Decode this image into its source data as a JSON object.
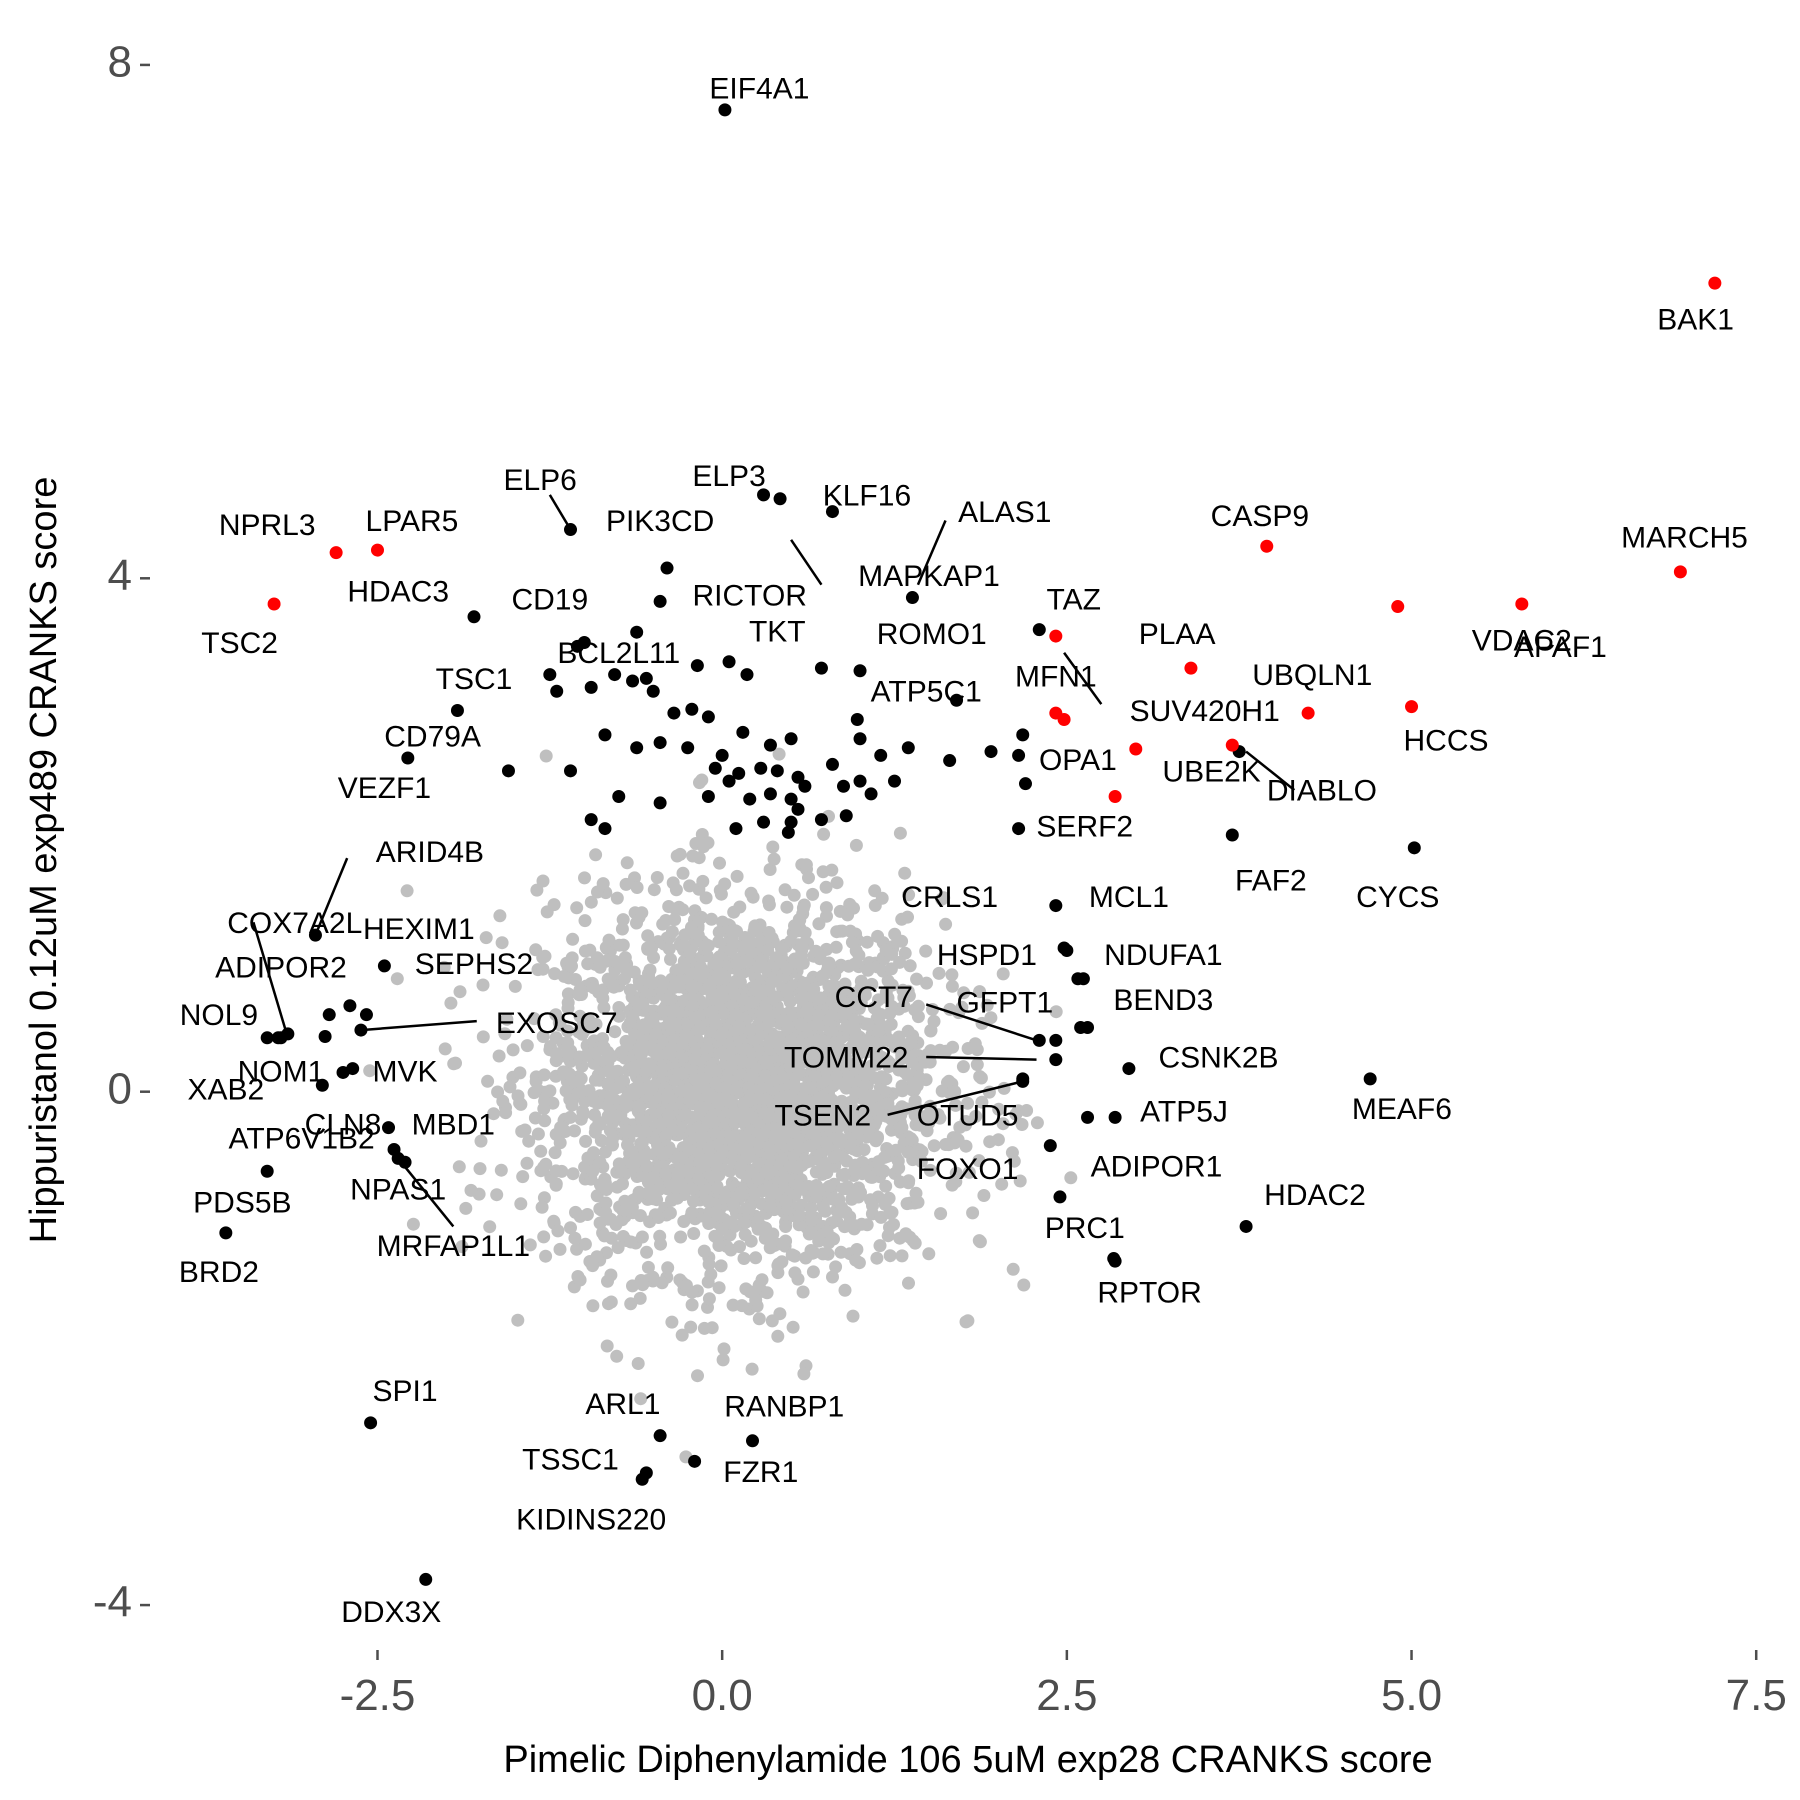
{
  "chart_data": {
    "type": "scatter",
    "title": "",
    "xlabel": "Pimelic Diphenylamide 106 5uM exp28 CRANKS score",
    "ylabel": "Hippuristanol 0.12uM exp489 CRANKS score",
    "xlim": [
      -4.15,
      7.6
    ],
    "ylim": [
      -4.35,
      8.35
    ],
    "xticks": [
      -2.5,
      0.0,
      2.5,
      5.0,
      7.5
    ],
    "xtick_labels": [
      "-2.5",
      "0.0",
      "2.5",
      "5.0",
      "7.5"
    ],
    "yticks": [
      -4,
      0,
      4,
      8
    ],
    "ytick_labels": [
      "-4",
      "0",
      "4",
      "8"
    ],
    "grid": false,
    "legend": "none",
    "colors": {
      "background": "#bfbfbf",
      "highlight": "#ff0000",
      "labeled": "#000000",
      "tick": "#4d4d4d"
    },
    "highlighted_genes": [
      {
        "label": "BAK1",
        "x": 7.2,
        "y": 6.3
      },
      {
        "label": "MARCH5",
        "x": 6.95,
        "y": 4.05
      },
      {
        "label": "APAF1",
        "x": 5.8,
        "y": 3.8
      },
      {
        "label": "VDAC2",
        "x": 4.9,
        "y": 3.78
      },
      {
        "label": "CASP9",
        "x": 3.95,
        "y": 4.25
      },
      {
        "label": "PLAA",
        "x": 3.4,
        "y": 3.3
      },
      {
        "label": "UBQLN1",
        "x": 4.25,
        "y": 2.95
      },
      {
        "label": "HCCS",
        "x": 5.0,
        "y": 3.0
      },
      {
        "label": "UBE2K",
        "x": 3.7,
        "y": 2.7
      },
      {
        "label": "OPA1",
        "x": 3.0,
        "y": 2.67
      },
      {
        "label": "MFN1",
        "x": 2.42,
        "y": 2.95
      },
      {
        "label": "SUV420H1",
        "x": 2.48,
        "y": 2.9
      },
      {
        "label": "TAZ",
        "x": 2.42,
        "y": 3.55
      },
      {
        "label": "SERF2",
        "x": 2.85,
        "y": 2.3
      },
      {
        "label": "NPRL3",
        "x": -2.8,
        "y": 4.2
      },
      {
        "label": "LPAR5",
        "x": -2.5,
        "y": 4.22
      },
      {
        "label": "TSC2",
        "x": -3.25,
        "y": 3.8
      }
    ],
    "labeled_genes": [
      {
        "label": "EIF4A1",
        "x": 0.02,
        "y": 7.65
      },
      {
        "label": "ELP6",
        "x": -1.1,
        "y": 4.38
      },
      {
        "label": "ELP3",
        "x": 0.3,
        "y": 4.65
      },
      {
        "label": "KLF16",
        "x": 0.8,
        "y": 4.52
      },
      {
        "label": "PIK3CD",
        "x": 0.42,
        "y": 4.62
      },
      {
        "label": "ALAS1",
        "x": 1.38,
        "y": 3.85
      },
      {
        "label": "MAPKAP1",
        "x": 0.72,
        "y": 3.3
      },
      {
        "label": "RICTOR",
        "x": -0.4,
        "y": 4.08
      },
      {
        "label": "ROMO1",
        "x": 1.0,
        "y": 3.28
      },
      {
        "label": "HDAC3",
        "x": -1.8,
        "y": 3.7
      },
      {
        "label": "CD19",
        "x": -0.45,
        "y": 3.82
      },
      {
        "label": "TKT",
        "x": -0.62,
        "y": 3.58
      },
      {
        "label": "BCL2L11",
        "x": -1.05,
        "y": 3.47
      },
      {
        "label": "ATP5C1",
        "x": 1.7,
        "y": 3.05
      },
      {
        "label": "TSC1",
        "x": -1.92,
        "y": 2.97
      },
      {
        "label": "CD79A",
        "x": -2.28,
        "y": 2.6
      },
      {
        "label": "ARID4B",
        "x": -2.95,
        "y": 1.22
      },
      {
        "label": "COX7A2L",
        "x": -3.2,
        "y": 0.42
      },
      {
        "label": "HEXIM1",
        "x": -2.45,
        "y": 0.98
      },
      {
        "label": "ADIPOR2",
        "x": -2.88,
        "y": 0.43
      },
      {
        "label": "SEPHS2",
        "x": -2.7,
        "y": 0.67
      },
      {
        "label": "NOL9",
        "x": -3.3,
        "y": 0.42
      },
      {
        "label": "EXOSC7",
        "x": -2.62,
        "y": 0.48
      },
      {
        "label": "NOM1",
        "x": -2.68,
        "y": 0.18
      },
      {
        "label": "MVK",
        "x": -2.75,
        "y": 0.15
      },
      {
        "label": "XAB2",
        "x": -2.9,
        "y": 0.05
      },
      {
        "label": "CLN8",
        "x": -2.42,
        "y": -0.28
      },
      {
        "label": "MBD1",
        "x": -2.38,
        "y": -0.45
      },
      {
        "label": "ATP6V1B2",
        "x": -3.3,
        "y": -0.62
      },
      {
        "label": "NPAS1",
        "x": -2.35,
        "y": -0.52
      },
      {
        "label": "PDS5B",
        "x": -3.6,
        "y": -1.1
      },
      {
        "label": "MRFAP1L1",
        "x": -2.3,
        "y": -0.55
      },
      {
        "label": "SPI1",
        "x": -2.55,
        "y": -2.58
      },
      {
        "label": "ARL1",
        "x": -0.45,
        "y": -2.68
      },
      {
        "label": "RANBP1",
        "x": 0.22,
        "y": -2.72
      },
      {
        "label": "TSSC1",
        "x": -0.55,
        "y": -2.97
      },
      {
        "label": "FZR1",
        "x": -0.2,
        "y": -2.88
      },
      {
        "label": "KIDINS220",
        "x": -0.58,
        "y": -3.02
      },
      {
        "label": "DDX3X",
        "x": -2.15,
        "y": -3.8
      },
      {
        "label": "MCL1",
        "x": 2.42,
        "y": 1.45
      },
      {
        "label": "NDUFA1",
        "x": 2.48,
        "y": 1.12
      },
      {
        "label": "BEND3",
        "x": 2.58,
        "y": 0.88
      },
      {
        "label": "CCT7",
        "x": 2.42,
        "y": 0.4
      },
      {
        "label": "GFPT1",
        "x": 2.6,
        "y": 0.5
      },
      {
        "label": "TOMM22",
        "x": 2.42,
        "y": 0.25
      },
      {
        "label": "CSNK2B",
        "x": 2.95,
        "y": 0.18
      },
      {
        "label": "TSEN2",
        "x": 2.18,
        "y": 0.08
      },
      {
        "label": "OTUD5",
        "x": 2.65,
        "y": -0.2
      },
      {
        "label": "ATP5J",
        "x": 2.85,
        "y": -0.2
      },
      {
        "label": "MEAF6",
        "x": 4.7,
        "y": 0.1
      },
      {
        "label": "FOXO1",
        "x": 2.38,
        "y": -0.42
      },
      {
        "label": "ADIPOR1",
        "x": 2.45,
        "y": -0.82
      },
      {
        "label": "PRC1",
        "x": 2.85,
        "y": -1.32
      },
      {
        "label": "RPTOR",
        "x": 2.84,
        "y": -1.3
      },
      {
        "label": "HDAC2",
        "x": 3.8,
        "y": -1.05
      },
      {
        "label": "FAF2",
        "x": 3.7,
        "y": 2.0
      },
      {
        "label": "CYCS",
        "x": 5.02,
        "y": 1.9
      },
      {
        "label": "DIABLO",
        "x": 3.75,
        "y": 2.65
      },
      {
        "label": "CRLS1",
        "x": 2.15,
        "y": 2.05
      },
      {
        "label": "HSPD1",
        "x": 2.5,
        "y": 1.1
      },
      {
        "label": "VEZF1",
        "x": -1.55,
        "y": 2.5
      }
    ],
    "other_black_points": [
      {
        "x": 2.3,
        "y": 3.6
      },
      {
        "x": -1.0,
        "y": 3.5
      },
      {
        "x": -1.25,
        "y": 3.25
      },
      {
        "x": -1.2,
        "y": 3.12
      },
      {
        "x": -0.95,
        "y": 3.15
      },
      {
        "x": -0.78,
        "y": 3.25
      },
      {
        "x": -0.65,
        "y": 3.2
      },
      {
        "x": -0.55,
        "y": 3.22
      },
      {
        "x": -0.5,
        "y": 3.12
      },
      {
        "x": -0.18,
        "y": 3.32
      },
      {
        "x": 0.05,
        "y": 3.35
      },
      {
        "x": 0.18,
        "y": 3.25
      },
      {
        "x": -0.35,
        "y": 2.95
      },
      {
        "x": -0.22,
        "y": 2.98
      },
      {
        "x": -0.1,
        "y": 2.92
      },
      {
        "x": 0.0,
        "y": 2.62
      },
      {
        "x": 0.15,
        "y": 2.8
      },
      {
        "x": 0.35,
        "y": 2.7
      },
      {
        "x": 0.5,
        "y": 2.75
      },
      {
        "x": 0.98,
        "y": 2.9
      },
      {
        "x": 1.0,
        "y": 2.75
      },
      {
        "x": 1.15,
        "y": 2.62
      },
      {
        "x": 1.35,
        "y": 2.68
      },
      {
        "x": -0.85,
        "y": 2.78
      },
      {
        "x": -0.62,
        "y": 2.68
      },
      {
        "x": -0.45,
        "y": 2.72
      },
      {
        "x": -0.25,
        "y": 2.68
      },
      {
        "x": -0.05,
        "y": 2.52
      },
      {
        "x": 0.12,
        "y": 2.48
      },
      {
        "x": 0.28,
        "y": 2.52
      },
      {
        "x": 0.4,
        "y": 2.5
      },
      {
        "x": 0.55,
        "y": 2.45
      },
      {
        "x": 0.8,
        "y": 2.55
      },
      {
        "x": 1.0,
        "y": 2.42
      },
      {
        "x": 1.65,
        "y": 2.58
      },
      {
        "x": 1.95,
        "y": 2.65
      },
      {
        "x": 2.15,
        "y": 2.62
      },
      {
        "x": 2.18,
        "y": 2.78
      },
      {
        "x": -1.1,
        "y": 2.5
      },
      {
        "x": -0.75,
        "y": 2.3
      },
      {
        "x": -0.45,
        "y": 2.25
      },
      {
        "x": -0.1,
        "y": 2.3
      },
      {
        "x": 0.05,
        "y": 2.42
      },
      {
        "x": 0.2,
        "y": 2.28
      },
      {
        "x": 0.35,
        "y": 2.32
      },
      {
        "x": 0.5,
        "y": 2.28
      },
      {
        "x": 0.6,
        "y": 2.38
      },
      {
        "x": 0.88,
        "y": 2.38
      },
      {
        "x": 1.08,
        "y": 2.32
      },
      {
        "x": 1.25,
        "y": 2.42
      },
      {
        "x": 2.2,
        "y": 2.4
      },
      {
        "x": -0.95,
        "y": 2.12
      },
      {
        "x": -0.85,
        "y": 2.05
      },
      {
        "x": 0.1,
        "y": 2.05
      },
      {
        "x": 0.3,
        "y": 2.1
      },
      {
        "x": 0.5,
        "y": 2.1
      },
      {
        "x": 0.55,
        "y": 2.2
      },
      {
        "x": 0.72,
        "y": 2.12
      },
      {
        "x": 0.9,
        "y": 2.15
      },
      {
        "x": 0.48,
        "y": 2.02
      },
      {
        "x": 2.62,
        "y": 0.88
      },
      {
        "x": 2.65,
        "y": 0.5
      },
      {
        "x": 2.18,
        "y": 0.1
      },
      {
        "x": 2.3,
        "y": 0.4
      },
      {
        "x": -3.22,
        "y": 0.42
      },
      {
        "x": -3.15,
        "y": 0.45
      },
      {
        "x": -2.85,
        "y": 0.6
      },
      {
        "x": -2.58,
        "y": 0.6
      }
    ],
    "background_points_description_count": 3000,
    "labels": [
      {
        "text": "EIF4A1",
        "x": 0.27,
        "y": 7.8
      },
      {
        "text": "BAK1",
        "x": 7.06,
        "y": 6.0
      },
      {
        "text": "ELP6",
        "x": -1.32,
        "y": 4.75
      },
      {
        "text": "ELP3",
        "x": 0.05,
        "y": 4.78
      },
      {
        "text": "KLF16",
        "x": 1.05,
        "y": 4.63
      },
      {
        "text": "NPRL3",
        "x": -3.3,
        "y": 4.4
      },
      {
        "text": "LPAR5",
        "x": -2.25,
        "y": 4.43
      },
      {
        "text": "PIK3CD",
        "x": -0.45,
        "y": 4.43
      },
      {
        "text": "ALAS1",
        "x": 2.05,
        "y": 4.5
      },
      {
        "text": "CASP9",
        "x": 3.9,
        "y": 4.47
      },
      {
        "text": "MARCH5",
        "x": 6.98,
        "y": 4.3
      },
      {
        "text": "MAPKAP1",
        "x": 1.5,
        "y": 4.0
      },
      {
        "text": "RICTOR",
        "x": 0.2,
        "y": 3.85
      },
      {
        "text": "HDAC3",
        "x": -2.35,
        "y": 3.88
      },
      {
        "text": "CD19",
        "x": -1.25,
        "y": 3.82
      },
      {
        "text": "TAZ",
        "x": 2.55,
        "y": 3.82
      },
      {
        "text": "TSC2",
        "x": -3.5,
        "y": 3.48
      },
      {
        "text": "PLAA",
        "x": 3.3,
        "y": 3.55
      },
      {
        "text": "VDAC2",
        "x": 5.8,
        "y": 3.5
      },
      {
        "text": "APAF1",
        "x": 6.08,
        "y": 3.45
      },
      {
        "text": "TKT",
        "x": 0.4,
        "y": 3.57
      },
      {
        "text": "ROMO1",
        "x": 1.52,
        "y": 3.55
      },
      {
        "text": "BCL2L11",
        "x": -0.75,
        "y": 3.4
      },
      {
        "text": "MFN1",
        "x": 2.42,
        "y": 3.22
      },
      {
        "text": "UBQLN1",
        "x": 4.28,
        "y": 3.23
      },
      {
        "text": "TSC1",
        "x": -1.8,
        "y": 3.2
      },
      {
        "text": "ATP5C1",
        "x": 1.48,
        "y": 3.1
      },
      {
        "text": "SUV420H1",
        "x": 3.5,
        "y": 2.95
      },
      {
        "text": "HCCS",
        "x": 5.25,
        "y": 2.72
      },
      {
        "text": "CD79A",
        "x": -2.1,
        "y": 2.75
      },
      {
        "text": "OPA1",
        "x": 2.58,
        "y": 2.57
      },
      {
        "text": "UBE2K",
        "x": 3.55,
        "y": 2.48
      },
      {
        "text": "VEZF1",
        "x": -2.45,
        "y": 2.35
      },
      {
        "text": "DIABLO",
        "x": 4.35,
        "y": 2.33
      },
      {
        "text": "ARID4B",
        "x": -2.12,
        "y": 1.85
      },
      {
        "text": "SERF2",
        "x": 2.63,
        "y": 2.05
      },
      {
        "text": "FAF2",
        "x": 3.98,
        "y": 1.63
      },
      {
        "text": "CRLS1",
        "x": 1.65,
        "y": 1.5
      },
      {
        "text": "CYCS",
        "x": 4.9,
        "y": 1.5
      },
      {
        "text": "MCL1",
        "x": 2.95,
        "y": 1.5
      },
      {
        "text": "COX7A2L",
        "x": -3.1,
        "y": 1.3
      },
      {
        "text": "HEXIM1",
        "x": -2.2,
        "y": 1.25
      },
      {
        "text": "HSPD1",
        "x": 1.92,
        "y": 1.05
      },
      {
        "text": "NDUFA1",
        "x": 3.2,
        "y": 1.05
      },
      {
        "text": "ADIPOR2",
        "x": -3.2,
        "y": 0.95
      },
      {
        "text": "SEPHS2",
        "x": -1.8,
        "y": 0.98
      },
      {
        "text": "BEND3",
        "x": 3.2,
        "y": 0.7
      },
      {
        "text": "CCT7",
        "x": 1.1,
        "y": 0.72
      },
      {
        "text": "GFPT1",
        "x": 2.05,
        "y": 0.68
      },
      {
        "text": "NOL9",
        "x": -3.65,
        "y": 0.58
      },
      {
        "text": "EXOSC7",
        "x": -1.2,
        "y": 0.52
      },
      {
        "text": "TOMM22",
        "x": 0.9,
        "y": 0.25
      },
      {
        "text": "CSNK2B",
        "x": 3.6,
        "y": 0.25
      },
      {
        "text": "NOM1",
        "x": -3.2,
        "y": 0.14
      },
      {
        "text": "MVK",
        "x": -2.3,
        "y": 0.14
      },
      {
        "text": "XAB2",
        "x": -3.6,
        "y": 0.0
      },
      {
        "text": "TSEN2",
        "x": 0.73,
        "y": -0.2
      },
      {
        "text": "OTUD5",
        "x": 1.78,
        "y": -0.2
      },
      {
        "text": "ATP5J",
        "x": 3.35,
        "y": -0.17
      },
      {
        "text": "MEAF6",
        "x": 4.93,
        "y": -0.15
      },
      {
        "text": "CLN8",
        "x": -2.75,
        "y": -0.27
      },
      {
        "text": "MBD1",
        "x": -1.95,
        "y": -0.27
      },
      {
        "text": "ATP6V1B2",
        "x": -3.05,
        "y": -0.38
      },
      {
        "text": "FOXO1",
        "x": 1.78,
        "y": -0.62
      },
      {
        "text": "ADIPOR1",
        "x": 3.15,
        "y": -0.6
      },
      {
        "text": "NPAS1",
        "x": -2.35,
        "y": -0.78
      },
      {
        "text": "HDAC2",
        "x": 4.3,
        "y": -0.82
      },
      {
        "text": "PDS5B",
        "x": -3.48,
        "y": -0.88
      },
      {
        "text": "PRC1",
        "x": 2.63,
        "y": -1.08
      },
      {
        "text": "MRFAP1L1",
        "x": -1.95,
        "y": -1.22
      },
      {
        "text": "BRD2",
        "x": -3.65,
        "y": -1.42
      },
      {
        "text": "RPTOR",
        "x": 3.1,
        "y": -1.58
      },
      {
        "text": "SPI1",
        "x": -2.3,
        "y": -2.35
      },
      {
        "text": "ARL1",
        "x": -0.72,
        "y": -2.45
      },
      {
        "text": "RANBP1",
        "x": 0.45,
        "y": -2.47
      },
      {
        "text": "TSSC1",
        "x": -1.1,
        "y": -2.88
      },
      {
        "text": "FZR1",
        "x": 0.28,
        "y": -2.98
      },
      {
        "text": "KIDINS220",
        "x": -0.95,
        "y": -3.35
      },
      {
        "text": "DDX3X",
        "x": -2.4,
        "y": -4.07
      }
    ],
    "leader_lines": [
      [
        -1.1,
        4.38,
        -1.25,
        4.65
      ],
      [
        0.72,
        3.95,
        0.5,
        4.3
      ],
      [
        1.42,
        3.95,
        1.62,
        4.45
      ],
      [
        2.48,
        3.42,
        2.75,
        3.02
      ],
      [
        3.8,
        2.65,
        4.15,
        2.35
      ],
      [
        -2.95,
        1.22,
        -2.72,
        1.82
      ],
      [
        -3.15,
        0.42,
        -3.4,
        1.32
      ],
      [
        -2.62,
        0.48,
        -1.78,
        0.55
      ],
      [
        -2.35,
        -0.52,
        -1.95,
        -1.05
      ],
      [
        2.28,
        0.4,
        1.48,
        0.68
      ],
      [
        2.28,
        0.25,
        1.48,
        0.27
      ],
      [
        2.18,
        0.08,
        1.2,
        -0.18
      ]
    ]
  }
}
